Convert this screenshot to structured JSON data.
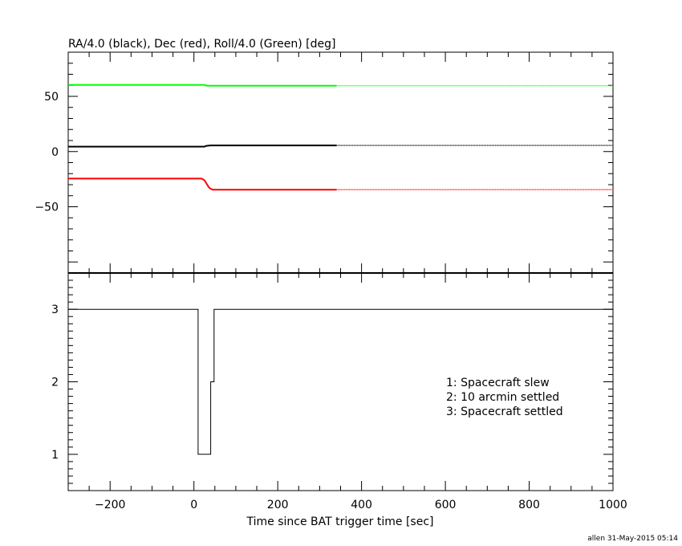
{
  "footer": "allen 31-May-2015 05:14",
  "chart_data": [
    {
      "type": "line",
      "title": "RA/4.0 (black), Dec (red), Roll/4.0 (Green) [deg]",
      "xlabel": "",
      "ylabel": "",
      "xlim": [
        -300,
        1000
      ],
      "ylim": [
        -110,
        90
      ],
      "y_ticks": [
        {
          "v": 50,
          "label": "50"
        },
        {
          "v": 0,
          "label": "0"
        },
        {
          "v": -50,
          "label": "−50"
        }
      ],
      "grid": false,
      "colors": {
        "black": "#000000",
        "red": "#ff0000",
        "green": "#00ff00"
      },
      "series": [
        {
          "color": "#00ff00",
          "solid_until": 340,
          "points": [
            [
              -300,
              60.3
            ],
            [
              25,
              60.3
            ],
            [
              30,
              59.7
            ],
            [
              1000,
              59.7
            ]
          ]
        },
        {
          "color": "#000000",
          "solid_until": 340,
          "points": [
            [
              -300,
              4.5
            ],
            [
              25,
              4.5
            ],
            [
              30,
              5.2
            ],
            [
              40,
              5.6
            ],
            [
              1000,
              5.6
            ]
          ]
        },
        {
          "color": "#ff0000",
          "solid_until": 340,
          "points": [
            [
              -300,
              -24.5
            ],
            [
              18,
              -24.5
            ],
            [
              25,
              -26
            ],
            [
              30,
              -29
            ],
            [
              35,
              -32
            ],
            [
              40,
              -33.8
            ],
            [
              45,
              -34.5
            ],
            [
              1000,
              -34.5
            ]
          ]
        }
      ]
    },
    {
      "type": "line",
      "xlabel": "Time since BAT trigger time [sec]",
      "ylabel": "",
      "xlim": [
        -300,
        1000
      ],
      "ylim": [
        0.5,
        3.5
      ],
      "x_ticks": [
        {
          "v": -200,
          "label": "−200"
        },
        {
          "v": 0,
          "label": "0"
        },
        {
          "v": 200,
          "label": "200"
        },
        {
          "v": 400,
          "label": "400"
        },
        {
          "v": 600,
          "label": "600"
        },
        {
          "v": 800,
          "label": "800"
        },
        {
          "v": 1000,
          "label": "1000"
        }
      ],
      "y_ticks": [
        {
          "v": 3,
          "label": "3"
        },
        {
          "v": 2,
          "label": "2"
        },
        {
          "v": 1,
          "label": "1"
        }
      ],
      "grid": false,
      "legend": [
        "1: Spacecraft slew",
        "2: 10 arcmin settled",
        "3: Spacecraft settled"
      ],
      "legend_position": "lower-right",
      "series": [
        {
          "color": "#000000",
          "steps": [
            [
              -300,
              3
            ],
            [
              10,
              1
            ],
            [
              40,
              2
            ],
            [
              48,
              3
            ],
            [
              1000,
              3
            ]
          ]
        }
      ]
    }
  ]
}
